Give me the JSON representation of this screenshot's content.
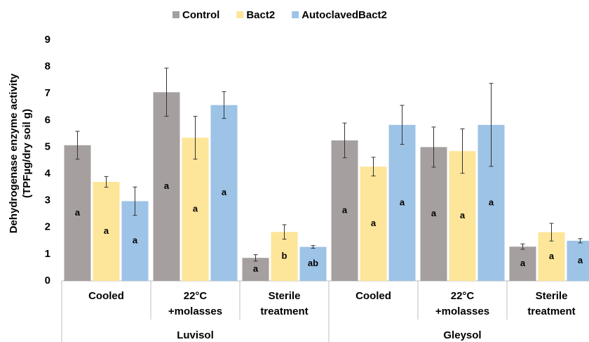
{
  "chart_data": {
    "type": "bar",
    "ylabel": [
      "Dehydrogenase enzyme activity",
      "(TPFµg/dry soil g)"
    ],
    "groups": [
      {
        "name": "Luvisol",
        "categories": [
          [
            "Cooled"
          ],
          [
            "22°C",
            "+molasses"
          ],
          [
            "Sterile",
            "treatment"
          ]
        ]
      },
      {
        "name": "Gleysol",
        "categories": [
          [
            "Cooled"
          ],
          [
            "22°C",
            "+molasses"
          ],
          [
            "Sterile",
            "treatment"
          ]
        ]
      }
    ],
    "series": [
      {
        "name": "Control",
        "color": "#a5a09f",
        "values": [
          5.07,
          7.05,
          0.86,
          5.25,
          5.0,
          1.28
        ],
        "errors": [
          0.52,
          0.9,
          0.12,
          0.65,
          0.75,
          0.1
        ],
        "letters": [
          "a",
          "a",
          "a",
          "a",
          "a",
          "a"
        ]
      },
      {
        "name": "Bact2",
        "color": "#fde69a",
        "values": [
          3.7,
          5.35,
          1.83,
          4.27,
          4.85,
          1.82
        ],
        "errors": [
          0.2,
          0.8,
          0.27,
          0.35,
          0.83,
          0.33
        ],
        "letters": [
          "a",
          "a",
          "b",
          "a",
          "a",
          "a"
        ]
      },
      {
        "name": "AutoclavedBact2",
        "color": "#9dc3e6",
        "values": [
          2.98,
          6.57,
          1.27,
          5.83,
          5.83,
          1.5
        ],
        "errors": [
          0.53,
          0.5,
          0.05,
          0.73,
          1.55,
          0.08
        ],
        "letters": [
          "a",
          "a",
          "ab",
          "a",
          "a",
          "a"
        ]
      }
    ],
    "ylim": [
      0,
      9
    ],
    "yticks": [
      0,
      1,
      2,
      3,
      4,
      5,
      6,
      7,
      8,
      9
    ],
    "grid": false
  }
}
